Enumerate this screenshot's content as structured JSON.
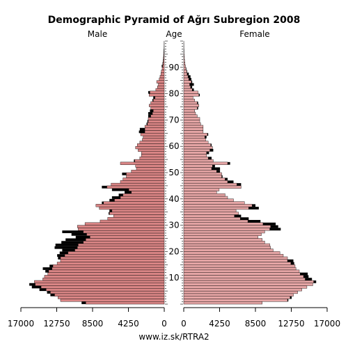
{
  "chart_data": {
    "type": "bar",
    "title": "Demographic Pyramid of Ağrı Subregion 2008",
    "left_label": "Male",
    "center_label": "Age",
    "right_label": "Female",
    "source": "www.iz.sk/RTRA2",
    "xlim": [
      0,
      17000
    ],
    "x_ticks": [
      {
        "value": 17000,
        "label": "17000"
      },
      {
        "value": 12750,
        "label": "12750"
      },
      {
        "value": 8500,
        "label": "8500"
      },
      {
        "value": 4250,
        "label": "4250"
      },
      {
        "value": 0,
        "label": "0"
      }
    ],
    "age_range": [
      0,
      100
    ],
    "age_ticks": [
      10,
      20,
      30,
      40,
      50,
      60,
      70,
      80,
      90
    ],
    "colors": {
      "male": "#d98585",
      "female": "#e5a5a5",
      "excess": "#000000",
      "border": "#000000"
    },
    "series": [
      {
        "name": "Male",
        "values": [
          9800,
          12300,
          12600,
          13500,
          13900,
          14800,
          15700,
          16000,
          15400,
          14400,
          14200,
          13800,
          14100,
          14400,
          13600,
          12700,
          12300,
          12600,
          12700,
          12400,
          12100,
          13000,
          12900,
          12200,
          11700,
          10500,
          11000,
          12100,
          10200,
          10300,
          9400,
          7600,
          6700,
          6000,
          6600,
          6500,
          7700,
          8100,
          7400,
          6500,
          6200,
          5400,
          4700,
          6200,
          7400,
          6300,
          5200,
          4900,
          4500,
          5000,
          3900,
          3300,
          3400,
          5200,
          3600,
          2900,
          2700,
          2700,
          3100,
          3400,
          3200,
          2900,
          2600,
          2500,
          2800,
          3000,
          2900,
          2300,
          2100,
          2000,
          1900,
          1900,
          1900,
          1700,
          1600,
          1800,
          1600,
          1400,
          1300,
          1800,
          1900,
          1000,
          800,
          700,
          900,
          600,
          500,
          400,
          350,
          250,
          300,
          200,
          150,
          120,
          100,
          80,
          60,
          40,
          30,
          20
        ]
      },
      {
        "name": "Female",
        "values": [
          9300,
          12400,
          12800,
          13000,
          13500,
          14000,
          14600,
          15300,
          15700,
          15200,
          14800,
          14700,
          13700,
          13300,
          13200,
          13100,
          13000,
          12300,
          11800,
          11400,
          10600,
          10300,
          10200,
          9600,
          9300,
          8800,
          9200,
          9600,
          11500,
          11200,
          10900,
          9100,
          7700,
          6800,
          6500,
          6200,
          8900,
          8500,
          7200,
          5900,
          5200,
          4900,
          3900,
          4200,
          6800,
          6800,
          5900,
          5200,
          4600,
          4500,
          4300,
          4300,
          3700,
          5500,
          3500,
          3300,
          2700,
          3000,
          3500,
          3400,
          3300,
          2900,
          2600,
          2700,
          2900,
          2300,
          2300,
          2300,
          2000,
          1900,
          1900,
          1600,
          1400,
          1300,
          1700,
          1800,
          1700,
          1300,
          1100,
          1900,
          1700,
          1200,
          1000,
          1200,
          1000,
          900,
          800,
          600,
          400,
          300,
          200,
          150,
          100,
          80,
          60,
          40,
          30,
          20,
          15,
          10
        ]
      }
    ]
  }
}
